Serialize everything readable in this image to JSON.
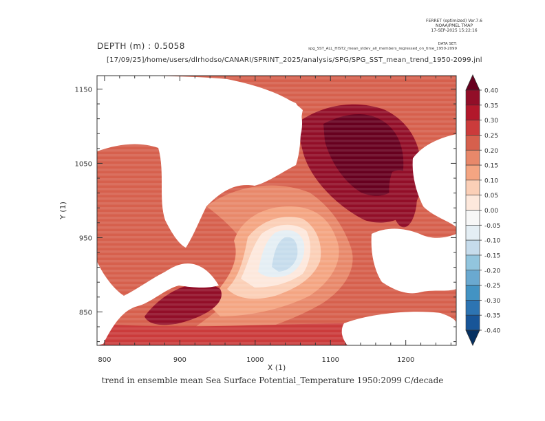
{
  "header": {
    "ferret_lines": [
      "FERRET (optimized) Ver.7.6",
      "NOAA/PMEL TMAP",
      "17-SEP-2025 15:22:16"
    ],
    "dataset_lines": [
      "DATA SET:",
      "spg_SST_ALL_HIST2_mean_stdev_all_members_regressed_on_time_1950-2099"
    ],
    "depth_label": "DEPTH (m) : 0.5058",
    "path_label": "[17/09/25]/home/users/dlrhodso/CANARI/SPRINT_2025/analysis/SPG/SPG_SST_mean_trend_1950-2099.jnl",
    "bottom_title": "trend in ensemble mean Sea Surface Potential_Temperature 1950:2099 C/decade"
  },
  "chart_data": {
    "type": "heatmap",
    "xlabel": "X (1)",
    "ylabel": "Y (1)",
    "xlim": [
      790,
      1267
    ],
    "ylim": [
      805,
      1168
    ],
    "x_ticks": [
      800,
      900,
      1000,
      1100,
      1200
    ],
    "y_ticks": [
      850,
      950,
      1050,
      1150
    ],
    "colorbar": {
      "levels": [
        "0.40",
        "0.35",
        "0.30",
        "0.25",
        "0.20",
        "0.15",
        "0.10",
        "0.05",
        "0.00",
        "-0.05",
        "-0.10",
        "-0.15",
        "-0.20",
        "-0.25",
        "-0.30",
        "-0.35",
        "-0.40"
      ],
      "colors": [
        "#67001f",
        "#920e28",
        "#b2182b",
        "#cb3b3b",
        "#d6604d",
        "#e8886a",
        "#f4a582",
        "#fbcfb7",
        "#fde8dc",
        "#f7f7f7",
        "#e4eef4",
        "#c6dcec",
        "#92c5de",
        "#6aa9d0",
        "#4393c3",
        "#2d74b2",
        "#185598",
        "#053061"
      ]
    }
  }
}
